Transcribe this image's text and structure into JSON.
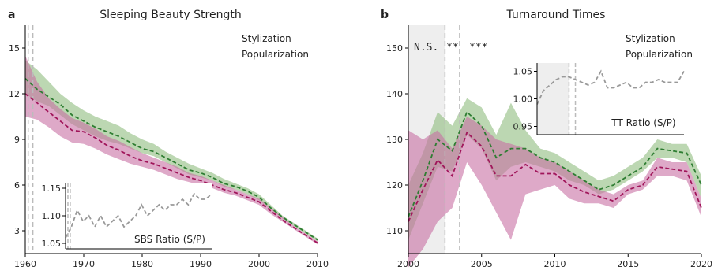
{
  "colors": {
    "stylization": "#2e7d32",
    "popularization": "#a0155a",
    "stylization_band": "#8fbc7f",
    "popularization_band": "#c86fa3",
    "ratio": "#999999",
    "vline": "#bbbbbb",
    "shade": "#eeeeee"
  },
  "chart_data": [
    {
      "panel_letter": "a",
      "title": "Sleeping Beauty Strength",
      "type": "line",
      "xlim": [
        1960,
        2010
      ],
      "ylim": [
        1.5,
        16.5
      ],
      "xticks": [
        1960,
        1970,
        1980,
        1990,
        2000,
        2010
      ],
      "yticks": [
        3,
        6,
        9,
        12,
        15
      ],
      "x": [
        1960,
        1962,
        1964,
        1966,
        1968,
        1970,
        1972,
        1974,
        1976,
        1978,
        1980,
        1982,
        1984,
        1986,
        1988,
        1990,
        1992,
        1994,
        1996,
        1998,
        2000,
        2002,
        2004,
        2006,
        2008,
        2010
      ],
      "vlines": [
        1960.5,
        1961.3
      ],
      "legend_position": "top-right",
      "series": [
        {
          "name": "Stylization",
          "values": [
            13.0,
            12.3,
            11.8,
            11.3,
            10.6,
            10.2,
            9.8,
            9.5,
            9.2,
            8.8,
            8.4,
            8.2,
            7.8,
            7.4,
            7.0,
            6.8,
            6.5,
            6.1,
            5.9,
            5.6,
            5.2,
            4.5,
            3.9,
            3.4,
            2.9,
            2.4
          ],
          "lower": [
            12.0,
            11.5,
            11.2,
            10.6,
            10.0,
            9.6,
            9.2,
            8.9,
            8.7,
            8.4,
            8.1,
            7.9,
            7.5,
            7.1,
            6.7,
            6.5,
            6.3,
            5.9,
            5.7,
            5.4,
            5.0,
            4.4,
            3.8,
            3.3,
            2.8,
            2.3
          ],
          "upper": [
            14.2,
            13.6,
            12.8,
            12.0,
            11.4,
            10.9,
            10.5,
            10.2,
            9.9,
            9.4,
            9.0,
            8.7,
            8.2,
            7.8,
            7.4,
            7.1,
            6.8,
            6.4,
            6.1,
            5.8,
            5.4,
            4.7,
            4.0,
            3.5,
            3.0,
            2.5
          ]
        },
        {
          "name": "Popularization",
          "values": [
            12.0,
            11.4,
            10.8,
            10.2,
            9.6,
            9.5,
            9.1,
            8.6,
            8.3,
            7.9,
            7.6,
            7.4,
            7.1,
            6.8,
            6.5,
            6.3,
            6.0,
            5.7,
            5.5,
            5.2,
            4.9,
            4.3,
            3.7,
            3.2,
            2.7,
            2.2
          ],
          "lower": [
            10.5,
            10.3,
            9.8,
            9.2,
            8.8,
            8.7,
            8.4,
            8.0,
            7.7,
            7.4,
            7.2,
            7.0,
            6.7,
            6.4,
            6.2,
            6.0,
            5.8,
            5.5,
            5.3,
            5.0,
            4.7,
            4.1,
            3.6,
            3.1,
            2.6,
            2.1
          ],
          "upper": [
            14.5,
            12.8,
            11.7,
            11.0,
            10.4,
            10.1,
            9.7,
            9.2,
            8.9,
            8.5,
            8.1,
            7.8,
            7.5,
            7.2,
            6.8,
            6.6,
            6.3,
            6.0,
            5.7,
            5.4,
            5.1,
            4.5,
            3.9,
            3.3,
            2.8,
            2.3
          ]
        }
      ],
      "inset": {
        "label": "SBS Ratio (S/P)",
        "xlim": [
          1967,
          1992
        ],
        "ylim": [
          1.04,
          1.16
        ],
        "yticks": [
          1.05,
          1.1,
          1.15
        ],
        "vlines": [
          1967.4,
          1967.8
        ],
        "x": [
          1967,
          1968,
          1969,
          1970,
          1971,
          1972,
          1973,
          1974,
          1975,
          1976,
          1977,
          1978,
          1979,
          1980,
          1981,
          1982,
          1983,
          1984,
          1985,
          1986,
          1987,
          1988,
          1989,
          1990,
          1991,
          1992
        ],
        "values": [
          1.06,
          1.08,
          1.11,
          1.09,
          1.1,
          1.08,
          1.1,
          1.08,
          1.09,
          1.1,
          1.08,
          1.09,
          1.1,
          1.12,
          1.1,
          1.11,
          1.12,
          1.11,
          1.12,
          1.12,
          1.13,
          1.12,
          1.14,
          1.13,
          1.13,
          1.14
        ]
      }
    },
    {
      "panel_letter": "b",
      "title": "Turnaround Times",
      "type": "line",
      "xlim": [
        2000,
        2020
      ],
      "ylim": [
        105,
        155
      ],
      "xticks": [
        2000,
        2005,
        2010,
        2015,
        2020
      ],
      "yticks": [
        110,
        120,
        130,
        140,
        150
      ],
      "x": [
        2000,
        2001,
        2002,
        2003,
        2004,
        2005,
        2006,
        2007,
        2008,
        2009,
        2010,
        2011,
        2012,
        2013,
        2014,
        2015,
        2016,
        2017,
        2018,
        2019,
        2020
      ],
      "vlines": [
        2002.5,
        2003.5
      ],
      "shade_x": [
        2000,
        2002.5
      ],
      "significance": [
        "N.S.",
        "**",
        "***"
      ],
      "legend_position": "top-right",
      "series": [
        {
          "name": "Stylization",
          "values": [
            113.0,
            121.0,
            130.0,
            127.5,
            136.0,
            133.0,
            126.0,
            128.0,
            128.0,
            126.0,
            125.0,
            123.0,
            121.0,
            119.0,
            120.0,
            122.0,
            124.0,
            128.0,
            127.5,
            127.0,
            120.0
          ],
          "lower": [
            108.0,
            116.0,
            124.0,
            123.0,
            131.0,
            128.0,
            121.0,
            124.0,
            125.0,
            124.0,
            123.0,
            121.0,
            120.0,
            118.0,
            119.0,
            121.0,
            123.0,
            126.0,
            126.0,
            125.0,
            117.0
          ],
          "upper": [
            120.0,
            127.0,
            136.0,
            133.0,
            139.0,
            137.0,
            131.0,
            138.0,
            132.0,
            128.0,
            127.0,
            125.0,
            123.0,
            121.0,
            122.0,
            124.0,
            126.0,
            130.0,
            129.0,
            129.0,
            122.0
          ]
        },
        {
          "name": "Popularization",
          "values": [
            112.0,
            119.0,
            125.5,
            122.0,
            131.5,
            128.5,
            122.0,
            122.0,
            124.5,
            122.5,
            122.5,
            120.0,
            118.5,
            117.5,
            116.5,
            119.0,
            120.0,
            124.0,
            123.5,
            123.0,
            115.0
          ],
          "lower": [
            102.0,
            106.0,
            112.0,
            115.0,
            125.0,
            120.0,
            114.0,
            108.0,
            118.0,
            119.0,
            120.0,
            117.0,
            116.0,
            116.0,
            115.0,
            118.0,
            119.0,
            122.0,
            122.0,
            121.0,
            113.0
          ],
          "upper": [
            132.0,
            130.0,
            132.0,
            128.0,
            135.0,
            133.0,
            130.0,
            129.0,
            128.0,
            126.0,
            125.0,
            123.0,
            121.0,
            119.0,
            118.0,
            120.0,
            121.0,
            126.0,
            125.0,
            125.0,
            117.0
          ]
        }
      ],
      "inset": {
        "label": "TT Ratio (S/P)",
        "xlim": [
          2007.5,
          2019
        ],
        "ylim": [
          0.935,
          1.065
        ],
        "yticks": [
          0.95,
          1.0,
          1.05
        ],
        "vlines": [
          2010,
          2010.5
        ],
        "shade_x": [
          2007.5,
          2010
        ],
        "x": [
          2007.5,
          2008,
          2008.5,
          2009,
          2009.5,
          2010,
          2010.5,
          2011,
          2011.5,
          2012,
          2012.5,
          2013,
          2013.5,
          2014,
          2014.5,
          2015,
          2015.5,
          2016,
          2016.5,
          2017,
          2017.5,
          2018,
          2018.5,
          2019
        ],
        "values": [
          0.99,
          1.015,
          1.025,
          1.035,
          1.04,
          1.04,
          1.035,
          1.03,
          1.025,
          1.03,
          1.05,
          1.02,
          1.02,
          1.025,
          1.03,
          1.02,
          1.02,
          1.03,
          1.03,
          1.035,
          1.03,
          1.03,
          1.03,
          1.05
        ]
      }
    }
  ]
}
